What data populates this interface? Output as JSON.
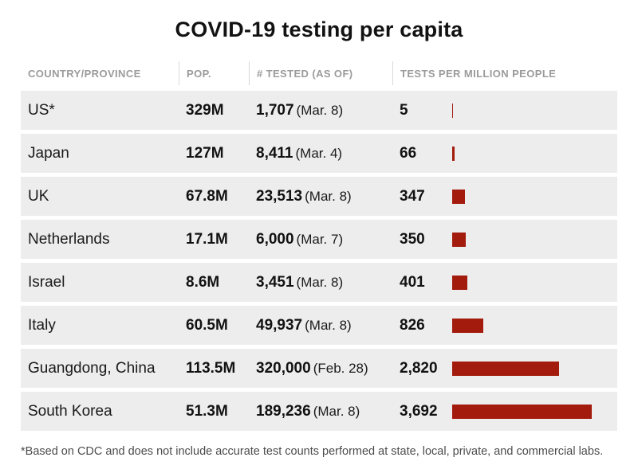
{
  "title": "COVID-19 testing per capita",
  "footnote": "*Based on CDC and does not include accurate test counts performed at state, local, private, and commercial labs.",
  "colors": {
    "bar": "#a31b0d",
    "row_bg": "#ededed"
  },
  "chart_data": {
    "type": "bar",
    "title": "COVID-19 testing per capita",
    "columns": [
      "COUNTRY/PROVINCE",
      "POP.",
      "# TESTED (AS OF)",
      "TESTS PER MILLION PEOPLE"
    ],
    "value_axis_max": 3692,
    "rows": [
      {
        "country": "US*",
        "pop": "329M",
        "tested": "1,707",
        "as_of": "(Mar. 8)",
        "per_million_label": "5",
        "per_million": 5
      },
      {
        "country": "Japan",
        "pop": "127M",
        "tested": "8,411",
        "as_of": "(Mar. 4)",
        "per_million_label": "66",
        "per_million": 66
      },
      {
        "country": "UK",
        "pop": "67.8M",
        "tested": "23,513",
        "as_of": "(Mar. 8)",
        "per_million_label": "347",
        "per_million": 347
      },
      {
        "country": "Netherlands",
        "pop": "17.1M",
        "tested": "6,000",
        "as_of": "(Mar. 7)",
        "per_million_label": "350",
        "per_million": 350
      },
      {
        "country": "Israel",
        "pop": "8.6M",
        "tested": "3,451",
        "as_of": "(Mar. 8)",
        "per_million_label": "401",
        "per_million": 401
      },
      {
        "country": "Italy",
        "pop": "60.5M",
        "tested": "49,937",
        "as_of": "(Mar. 8)",
        "per_million_label": "826",
        "per_million": 826
      },
      {
        "country": "Guangdong, China",
        "pop": "113.5M",
        "tested": "320,000",
        "as_of": "(Feb. 28)",
        "per_million_label": "2,820",
        "per_million": 2820
      },
      {
        "country": "South Korea",
        "pop": "51.3M",
        "tested": "189,236",
        "as_of": "(Mar. 8)",
        "per_million_label": "3,692",
        "per_million": 3692
      }
    ]
  }
}
